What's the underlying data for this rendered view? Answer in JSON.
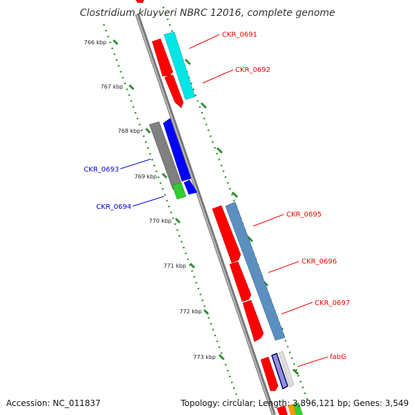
{
  "title": "Clostridium kluyveri NBRC 12016, complete genome",
  "footer": {
    "accession": "Accession: NC_011837",
    "topology": "Topology: circular; Length: 3,896,121 bp; Genes: 3,549"
  },
  "colors": {
    "backbone": "#8c8c8c",
    "tick_green": "#2e8b2e",
    "label_red": "#ee0000",
    "label_blue": "#0000cc",
    "gene_red": "#ff0000",
    "gene_cyan": "#00eeee",
    "gene_steelblue": "#5b8fc0",
    "gene_blue": "#0000ff",
    "gene_gray": "#777777",
    "gene_green": "#33cc33"
  },
  "ticks": [
    {
      "label": "766 kbp"
    },
    {
      "label": "767 kbp"
    },
    {
      "label": "768 kbp"
    },
    {
      "label": "769 kbp"
    },
    {
      "label": "770 kbp"
    },
    {
      "label": "771 kbp"
    },
    {
      "label": "772 kbp"
    },
    {
      "label": "773 kbp"
    }
  ],
  "gene_labels": [
    {
      "text": "CKR_0691",
      "strand": "forward"
    },
    {
      "text": "CKR_0692",
      "strand": "forward"
    },
    {
      "text": "CKR_0693",
      "strand": "reverse"
    },
    {
      "text": "CKR_0694",
      "strand": "reverse"
    },
    {
      "text": "CKR_0695",
      "strand": "forward"
    },
    {
      "text": "CKR_0696",
      "strand": "forward"
    },
    {
      "text": "CKR_0697",
      "strand": "forward"
    },
    {
      "text": "fabG",
      "strand": "forward"
    }
  ]
}
